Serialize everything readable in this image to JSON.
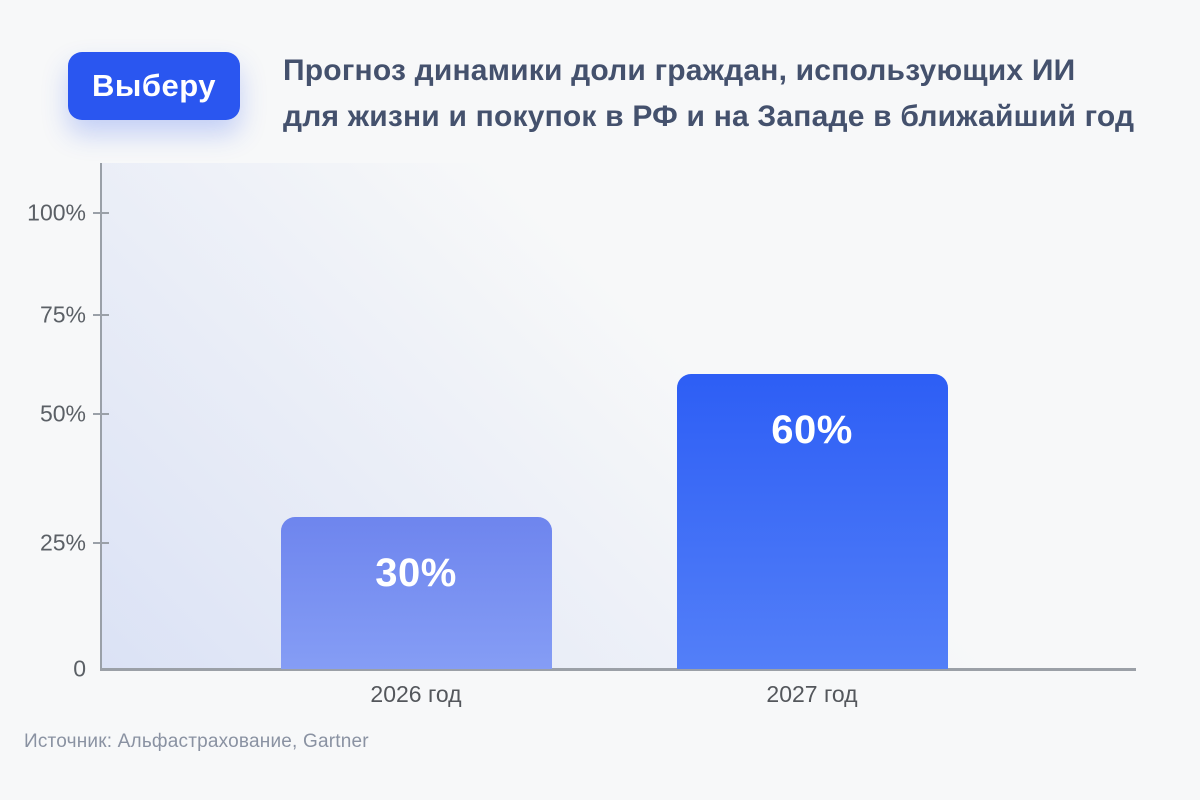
{
  "brand": {
    "logo_text": "Выберу",
    "logo_color": "#2a56f0"
  },
  "header": {
    "title_lines": [
      "Прогноз динамики доли граждан, использующих ИИ",
      "для жизни и покупок в РФ и на Западе в ближайший год"
    ]
  },
  "chart_data": {
    "type": "bar",
    "title": "Прогноз динамики доли граждан, использующих ИИ для жизни и покупок в РФ и на Западе в ближайший год",
    "categories": [
      "2026 год",
      "2027 год"
    ],
    "values": [
      30,
      60
    ],
    "value_labels": [
      "30%",
      "60%"
    ],
    "xlabel": "",
    "ylabel": "",
    "ylim": [
      0,
      100
    ],
    "yticks": [
      {
        "value": 0,
        "label": "0"
      },
      {
        "value": 25,
        "label": "25%"
      },
      {
        "value": 50,
        "label": "50%"
      },
      {
        "value": 75,
        "label": "75%"
      },
      {
        "value": 100,
        "label": "100%"
      }
    ],
    "grid": false,
    "legend": null,
    "bar_colors": [
      {
        "top": "#6e85ee",
        "bottom": "#859df5"
      },
      {
        "top": "#2d5ef5",
        "bottom": "#537ff8"
      }
    ],
    "axis_color": "#9aa0a8",
    "plot_tint_color": "#dbe2f5"
  },
  "footer": {
    "source": "Источник: Альфастрахование, Gartner"
  }
}
